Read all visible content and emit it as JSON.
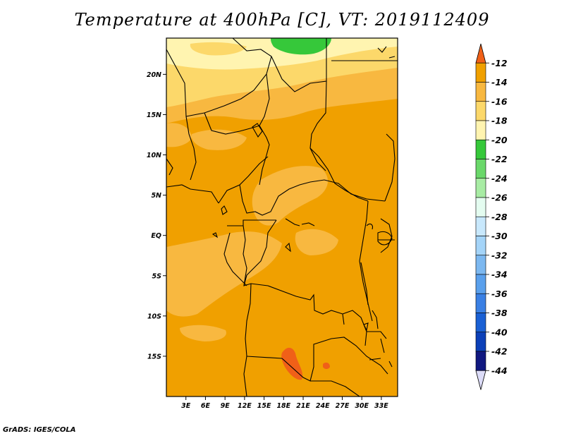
{
  "title": "Temperature at 400hPa [C], VT: 2019112409",
  "credit": "GrADS: IGES/COLA",
  "map": {
    "lat_labels": [
      "20N",
      "15N",
      "10N",
      "5N",
      "EQ",
      "5S",
      "10S",
      "15S"
    ],
    "lat_values": [
      20,
      15,
      10,
      5,
      0,
      -5,
      -10,
      -15
    ],
    "lon_labels": [
      "3E",
      "6E",
      "9E",
      "12E",
      "15E",
      "18E",
      "21E",
      "24E",
      "27E",
      "30E",
      "33E"
    ],
    "lon_values": [
      3,
      6,
      9,
      12,
      15,
      18,
      21,
      24,
      27,
      30,
      33
    ],
    "lat_range": [
      -20,
      24.5
    ],
    "lon_range": [
      0,
      35.5
    ]
  },
  "legend": {
    "labels": [
      "-12",
      "-14",
      "-16",
      "-18",
      "-20",
      "-22",
      "-24",
      "-26",
      "-28",
      "-30",
      "-32",
      "-34",
      "-36",
      "-38",
      "-40",
      "-42",
      "-44"
    ],
    "colors": [
      "#f06018",
      "#f0a000",
      "#f8b840",
      "#fcd86a",
      "#fff4b0",
      "#36c83a",
      "#6ad86a",
      "#a8eca4",
      "#e4fcf0",
      "#c8e8fc",
      "#a4d4f8",
      "#7cb8f0",
      "#5aa0ec",
      "#3a80e4",
      "#1a60d4",
      "#0c40b8",
      "#101880",
      "#dcdcf8"
    ]
  }
}
